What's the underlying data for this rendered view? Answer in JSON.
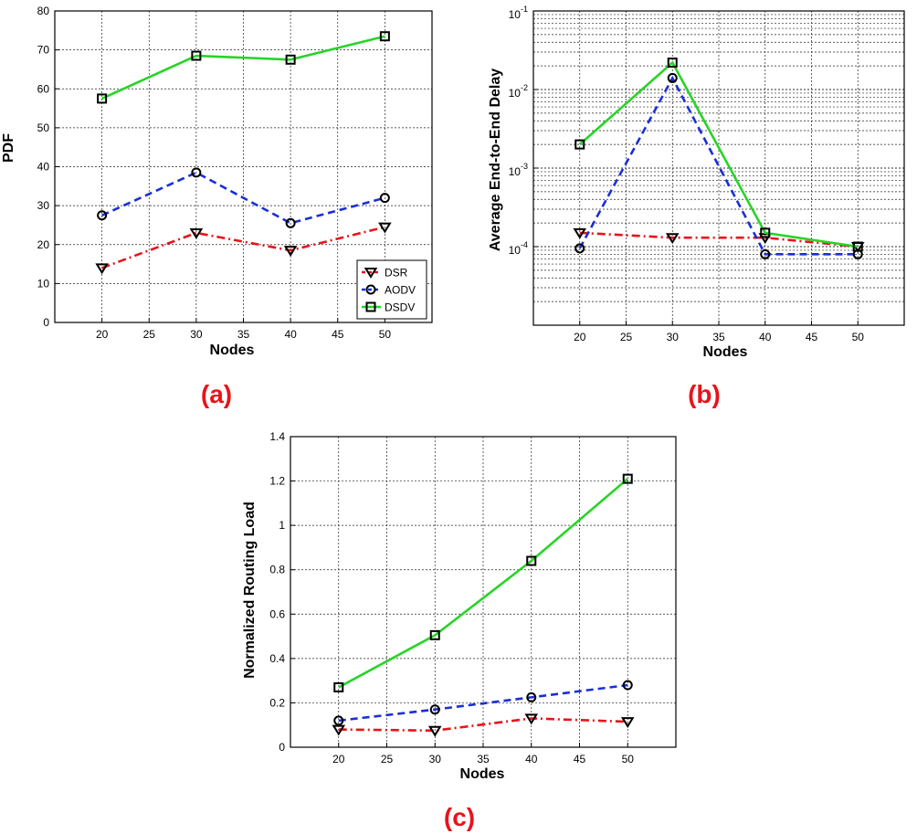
{
  "chart_data": [
    {
      "id": "a",
      "type": "line",
      "caption": "(a)",
      "title": "",
      "xlabel": "Nodes",
      "ylabel": "PDF",
      "yscale": "linear",
      "xlim": [
        15,
        55
      ],
      "ylim": [
        0,
        80
      ],
      "xticks": [
        20,
        25,
        30,
        35,
        40,
        45,
        50
      ],
      "yticks": [
        0,
        10,
        20,
        30,
        40,
        50,
        60,
        70,
        80
      ],
      "grid": true,
      "legend": "bottom-right",
      "x": [
        20,
        30,
        40,
        50
      ],
      "series": [
        {
          "name": "DSR",
          "color": "#e8141b",
          "dash": "dashdot",
          "marker": "triangle-down",
          "values": [
            14,
            23,
            18.5,
            24.5
          ]
        },
        {
          "name": "AODV",
          "color": "#1a2fd6",
          "dash": "dashed",
          "marker": "circle",
          "values": [
            27.5,
            38.5,
            25.5,
            32
          ]
        },
        {
          "name": "DSDV",
          "color": "#27d427",
          "dash": "solid",
          "marker": "square",
          "values": [
            57.5,
            68.5,
            67.5,
            73.5
          ]
        }
      ]
    },
    {
      "id": "b",
      "type": "line",
      "caption": "(b)",
      "title": "",
      "xlabel": "Nodes",
      "ylabel": "Average End-to-End Delay",
      "yscale": "log",
      "xlim": [
        15,
        55
      ],
      "ylim": [
        1e-05,
        0.1
      ],
      "xticks": [
        20,
        25,
        30,
        35,
        40,
        45,
        50
      ],
      "yticks": [
        0.0001,
        0.001,
        0.01,
        0.1
      ],
      "ytick_exponents": [
        "-4",
        "-3",
        "-2",
        "-1"
      ],
      "grid": true,
      "legend": "none",
      "x": [
        20,
        30,
        40,
        50
      ],
      "series": [
        {
          "name": "DSR",
          "color": "#e8141b",
          "dash": "dashdot",
          "marker": "triangle-down",
          "values": [
            0.00015,
            0.00013,
            0.00013,
            0.0001
          ]
        },
        {
          "name": "AODV",
          "color": "#1a2fd6",
          "dash": "dashed",
          "marker": "circle",
          "values": [
            9.5e-05,
            0.014,
            8e-05,
            8e-05
          ]
        },
        {
          "name": "DSDV",
          "color": "#27d427",
          "dash": "solid",
          "marker": "square",
          "values": [
            0.002,
            0.022,
            0.00015,
            0.0001
          ]
        }
      ]
    },
    {
      "id": "c",
      "type": "line",
      "caption": "(c)",
      "title": "",
      "xlabel": "Nodes",
      "ylabel": "Normalized Routing Load",
      "yscale": "linear",
      "xlim": [
        15,
        55
      ],
      "ylim": [
        0,
        1.4
      ],
      "xticks": [
        20,
        25,
        30,
        35,
        40,
        45,
        50
      ],
      "yticks": [
        0,
        0.2,
        0.4,
        0.6,
        0.8,
        1,
        1.2,
        1.4
      ],
      "grid": true,
      "legend": "none",
      "x": [
        20,
        30,
        40,
        50
      ],
      "series": [
        {
          "name": "DSR",
          "color": "#e8141b",
          "dash": "dashdot",
          "marker": "triangle-down",
          "values": [
            0.08,
            0.075,
            0.13,
            0.115
          ]
        },
        {
          "name": "AODV",
          "color": "#1a2fd6",
          "dash": "dashed",
          "marker": "circle",
          "values": [
            0.12,
            0.17,
            0.225,
            0.28
          ]
        },
        {
          "name": "DSDV",
          "color": "#27d427",
          "dash": "solid",
          "marker": "square",
          "values": [
            0.27,
            0.505,
            0.84,
            1.21
          ]
        }
      ]
    }
  ]
}
